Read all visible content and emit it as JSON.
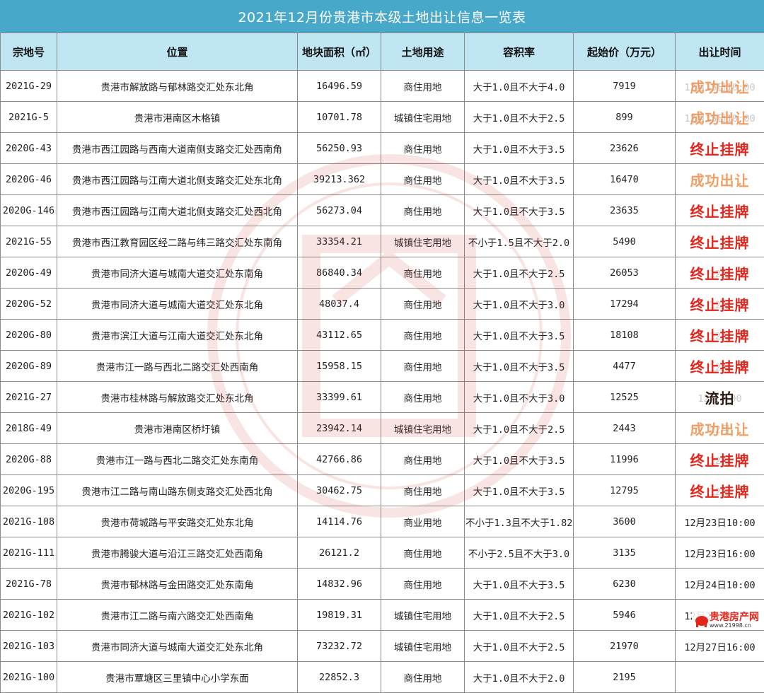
{
  "title": "2021年12月份贵港市本级土地出让信息一览表",
  "headers": [
    "宗地号",
    "位置",
    "地块面积（㎡）",
    "土地用途",
    "容积率",
    "起始价（万元）",
    "出让时间"
  ],
  "rows": [
    {
      "id": "2021G-29",
      "loc": "贵港市解放路与郁林路交汇处东北角",
      "area": "16496.59",
      "use": "商住用地",
      "far": "大于1.0且不大于4.0",
      "price": "7919",
      "time": "12月15日10:00",
      "status": "成功出让",
      "kind": "ok"
    },
    {
      "id": "2021G-5",
      "loc": "贵港市港南区木格镇",
      "area": "10701.78",
      "use": "城镇住宅用地",
      "far": "大于1.0且不大于2.5",
      "price": "899",
      "time": "12月15日10:00",
      "status": "成功出让",
      "kind": "ok"
    },
    {
      "id": "2020G-43",
      "loc": "贵港市西江园路与西南大道南侧支路交汇处西南角",
      "area": "56250.93",
      "use": "商住用地",
      "far": "大于1.0且不大于3.5",
      "price": "23626",
      "time": "",
      "status": "终止挂牌",
      "kind": "stop"
    },
    {
      "id": "2020G-46",
      "loc": "贵港市西江园路与江南大道北侧支路交汇处东北角",
      "area": "39213.362",
      "use": "商住用地",
      "far": "大于1.0且不大于3.5",
      "price": "16470",
      "time": "",
      "status": "成功出让",
      "kind": "ok"
    },
    {
      "id": "2020G-146",
      "loc": "贵港市西江园路与江南大道北侧支路交汇处西北角",
      "area": "56273.04",
      "use": "商住用地",
      "far": "大于1.0且不大于3.5",
      "price": "23635",
      "time": "",
      "status": "终止挂牌",
      "kind": "stop"
    },
    {
      "id": "2021G-55",
      "loc": "贵港市西江教育园区经二路与纬三路交汇处东南角",
      "area": "33354.21",
      "use": "城镇住宅用地",
      "far": "不小于1.5且不大于2.0",
      "price": "5490",
      "time": "",
      "status": "终止挂牌",
      "kind": "stop"
    },
    {
      "id": "2020G-49",
      "loc": "贵港市同济大道与城南大道交汇处东南角",
      "area": "86840.34",
      "use": "商住用地",
      "far": "大于1.0且不大于2.5",
      "price": "26053",
      "time": "12月",
      "status": "终止挂牌",
      "kind": "stop"
    },
    {
      "id": "2020G-52",
      "loc": "贵港市同济大道与城南大道交汇处东北角",
      "area": "48037.4",
      "use": "商住用地",
      "far": "大于1.0且不大于3.0",
      "price": "17294",
      "time": "12月",
      "status": "终止挂牌",
      "kind": "stop"
    },
    {
      "id": "2020G-80",
      "loc": "贵港市滨江大道与江南大道交汇处东北角",
      "area": "43112.65",
      "use": "商住用地",
      "far": "大于1.0且不大于3.5",
      "price": "18108",
      "time": "12月",
      "status": "终止挂牌",
      "kind": "stop"
    },
    {
      "id": "2020G-89",
      "loc": "贵港市江一路与西北二路交汇处西南角",
      "area": "15958.15",
      "use": "商住用地",
      "far": "大于1.0且不大于3.5",
      "price": "4477",
      "time": "12月",
      "status": "终止挂牌",
      "kind": "stop"
    },
    {
      "id": "2021G-27",
      "loc": "贵港市桂林路与解放路交汇处东北角",
      "area": "33399.61",
      "use": "商住用地",
      "far": "大于1.0且不大于3.0",
      "price": "12525",
      "time": "12月 :00",
      "status": "流拍",
      "kind": "fail"
    },
    {
      "id": "2018G-49",
      "loc": "贵港市港南区桥圩镇",
      "area": "23942.14",
      "use": "城镇住宅用地",
      "far": "大于1.0且不大于2.5",
      "price": "2443",
      "time": "12月",
      "status": "成功出让",
      "kind": "ok"
    },
    {
      "id": "2020G-88",
      "loc": "贵港市江一路与西北二路交汇处东南角",
      "area": "42766.86",
      "use": "商住用地",
      "far": "大于1.0且不大于3.5",
      "price": "11996",
      "time": "12月",
      "status": "终止挂牌",
      "kind": "stop"
    },
    {
      "id": "2020G-195",
      "loc": "贵港市江二路与南山路东侧支路交汇处西北角",
      "area": "30462.75",
      "use": "商住用地",
      "far": "大于1.0且不大于3.5",
      "price": "12795",
      "time": "12月",
      "status": "终止挂牌",
      "kind": "stop"
    },
    {
      "id": "2021G-108",
      "loc": "贵港市荷城路与平安路交汇处东北角",
      "area": "14114.76",
      "use": "商业用地",
      "far": "不小于1.3且不大于1.82",
      "price": "3600",
      "time": "12月23日10:00",
      "status": "",
      "kind": "plain"
    },
    {
      "id": "2021G-111",
      "loc": "贵港市腾骏大道与沿江三路交汇处西南角",
      "area": "26121.2",
      "use": "商住用地",
      "far": "不小于2.5且不大于3.0",
      "price": "3135",
      "time": "12月23日16:00",
      "status": "",
      "kind": "plain"
    },
    {
      "id": "2021G-78",
      "loc": "贵港市郁林路与金田路交汇处东南角",
      "area": "14832.96",
      "use": "商住用地",
      "far": "大于1.0且不大于3.5",
      "price": "6230",
      "time": "12月24日10:00",
      "status": "",
      "kind": "plain"
    },
    {
      "id": "2021G-102",
      "loc": "贵港市江二路与南六路交汇处西南角",
      "area": "19819.31",
      "use": "城镇住宅用地",
      "far": "大于1.0且不大于2.5",
      "price": "5946",
      "time": "12月27日10:00",
      "status": "",
      "kind": "plain"
    },
    {
      "id": "2021G-103",
      "loc": "贵港市同济大道与城南大道交汇处东北角",
      "area": "73232.72",
      "use": "城镇住宅用地",
      "far": "大于1.0且不大于2.5",
      "price": "21970",
      "time": "12月27日16:00",
      "status": "",
      "kind": "plain"
    },
    {
      "id": "2021G-100",
      "loc": "贵港市覃塘区三里镇中心小学东面",
      "area": "22852.3",
      "use": "商住用地",
      "far": "大于1.0且不大于2.0",
      "price": "2195",
      "time": "",
      "status": "",
      "kind": "plain"
    }
  ],
  "logo": {
    "name": "贵港房产网",
    "url": "www.21998.cn"
  },
  "colors": {
    "title_bg": "#48a8c9",
    "header_bg": "#bfe6f2",
    "ok": "#f08e4a",
    "stop": "#e4251c"
  }
}
